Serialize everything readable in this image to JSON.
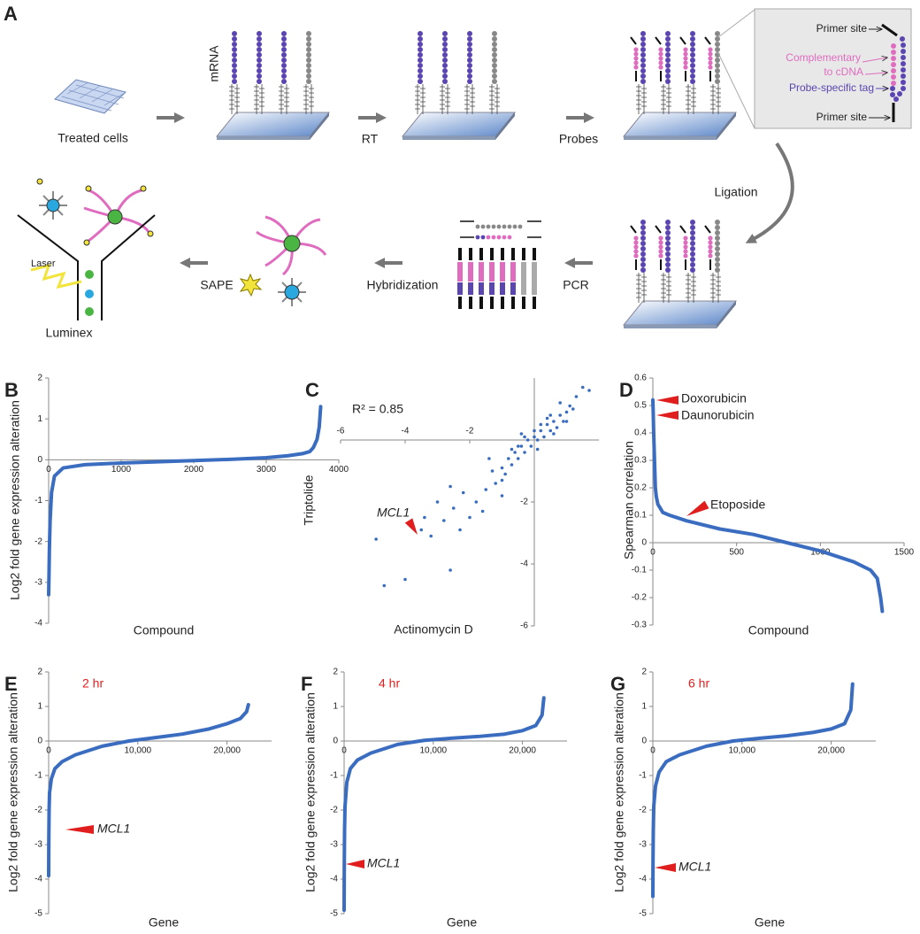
{
  "panel_a": {
    "panel_letter": "A",
    "treated_cells": "Treated cells",
    "mrna": "mRNA",
    "rt": "RT",
    "probes": "Probes",
    "primer_site_top": "Primer site",
    "complementary_1": "Complementary",
    "complementary_2": "to cDNA",
    "probe_tag": "Probe-specific tag",
    "primer_site_bottom": "Primer site",
    "ligation": "Ligation",
    "pcr": "PCR",
    "hybridization": "Hybridization",
    "sape": "SAPE",
    "laser": "Laser",
    "luminex": "Luminex"
  },
  "chart_data": [
    {
      "panel": "B",
      "type": "line",
      "color": "#3a6cc0",
      "x": [
        0,
        5,
        10,
        20,
        40,
        80,
        200,
        500,
        1000,
        1500,
        2000,
        2500,
        3000,
        3300,
        3500,
        3600,
        3650,
        3700,
        3730,
        3750
      ],
      "values": [
        -3.3,
        -2.8,
        -2.2,
        -1.5,
        -0.8,
        -0.4,
        -0.2,
        -0.12,
        -0.08,
        -0.05,
        -0.02,
        0.01,
        0.05,
        0.1,
        0.15,
        0.2,
        0.3,
        0.5,
        0.8,
        1.3
      ],
      "xlim": [
        0,
        4000
      ],
      "xticks": [
        0,
        1000,
        2000,
        3000,
        4000
      ],
      "ylim": [
        -4,
        2
      ],
      "yticks": [
        -4,
        -3,
        -2,
        -1,
        0,
        1,
        2
      ],
      "xlabel": "Compound",
      "ylabel": "Log2 fold gene expression alteration"
    },
    {
      "panel": "C",
      "type": "scatter",
      "color": "#3a6cc0",
      "x": [
        -1.5,
        -1.3,
        -1.2,
        -1.0,
        -0.9,
        -0.8,
        -0.7,
        -0.6,
        -0.5,
        -0.4,
        -0.3,
        -0.2,
        -0.1,
        0,
        0.1,
        0.2,
        0.3,
        0.4,
        0.5,
        0.6,
        0.7,
        0.8,
        0.9,
        1.0,
        1.1,
        1.2,
        1.3,
        -0.5,
        -0.3,
        0,
        0.2,
        0.4,
        0.6,
        0.8,
        1.0,
        -1.0,
        -0.7,
        -0.4,
        0.1,
        0.5,
        -2.5,
        -2.2,
        -2.8,
        -3.0,
        -2.0,
        -3.5,
        -3.2,
        -2.6,
        -1.8,
        -1.6,
        -4.9,
        -4.65,
        -4.0,
        -2.6,
        -1.0,
        -2.3,
        -3.4,
        1.5,
        1.7,
        -1.4
      ],
      "values": [
        -1.6,
        -1.0,
        -1.4,
        -0.9,
        -1.1,
        -0.6,
        -0.8,
        -0.4,
        -0.6,
        -0.2,
        -0.4,
        0.0,
        -0.2,
        0.1,
        0.0,
        0.3,
        0.1,
        0.5,
        0.3,
        0.6,
        0.4,
        0.8,
        0.6,
        0.9,
        1.1,
        1.0,
        1.4,
        -0.2,
        0.1,
        0.3,
        0.5,
        0.7,
        0.2,
        1.2,
        0.6,
        -1.3,
        -0.3,
        0.2,
        -0.3,
        0.8,
        -2.2,
        -1.7,
        -2.6,
        -2.0,
        -2.5,
        -2.9,
        -3.1,
        -1.5,
        -2.0,
        -2.3,
        -3.2,
        -4.7,
        -4.5,
        -4.2,
        -1.8,
        -2.9,
        -2.5,
        1.7,
        1.6,
        -0.6
      ],
      "xlim": [
        -6,
        2
      ],
      "xticks": [
        -6,
        -4,
        -2
      ],
      "ylim": [
        -6,
        2
      ],
      "yticks": [
        -6,
        -4,
        -2
      ],
      "annotations": [
        "R² = 0.85",
        "MCL1"
      ],
      "xlabel": "Actinomycin D",
      "ylabel": "Triptolide"
    },
    {
      "panel": "D",
      "type": "line",
      "color": "#3a6cc0",
      "x": [
        0,
        2,
        5,
        10,
        15,
        20,
        30,
        60,
        100,
        200,
        400,
        600,
        800,
        1000,
        1200,
        1300,
        1340,
        1360,
        1370
      ],
      "values": [
        0.52,
        0.48,
        0.4,
        0.3,
        0.2,
        0.17,
        0.14,
        0.11,
        0.1,
        0.08,
        0.05,
        0.03,
        0.0,
        -0.03,
        -0.07,
        -0.1,
        -0.13,
        -0.2,
        -0.25
      ],
      "xlim": [
        0,
        1500
      ],
      "xticks": [
        0,
        500,
        1000,
        1500
      ],
      "ylim": [
        -0.3,
        0.6
      ],
      "yticks": [
        -0.3,
        -0.2,
        -0.1,
        0,
        0.1,
        0.2,
        0.3,
        0.4,
        0.5,
        0.6
      ],
      "annotations": [
        "Doxorubicin",
        "Daunorubicin",
        "Etoposide"
      ],
      "xlabel": "Compound",
      "ylabel": "Spearman correlation"
    },
    {
      "panel": "E",
      "type": "line",
      "color": "#3a6cc0",
      "x": [
        0,
        20,
        50,
        100,
        300,
        700,
        1500,
        3000,
        6000,
        9000,
        12000,
        15000,
        18000,
        20000,
        21500,
        22200,
        22400
      ],
      "values": [
        -3.9,
        -2.8,
        -2.0,
        -1.5,
        -1.1,
        -0.8,
        -0.6,
        -0.4,
        -0.15,
        0,
        0.1,
        0.2,
        0.35,
        0.5,
        0.65,
        0.85,
        1.05
      ],
      "xlim": [
        0,
        25000
      ],
      "xticks": [
        0,
        {
          "value": 10000,
          "label": "10,000"
        },
        {
          "value": 20000,
          "label": "20,000"
        }
      ],
      "ylim": [
        -5,
        2
      ],
      "yticks": [
        -5,
        -4,
        -3,
        -2,
        -1,
        0,
        1,
        2
      ],
      "annotations": [
        "2 hr",
        "MCL1"
      ],
      "xlabel": "Gene",
      "ylabel": "Log2 fold gene expression alteration"
    },
    {
      "panel": "F",
      "type": "line",
      "color": "#3a6cc0",
      "x": [
        0,
        20,
        50,
        100,
        300,
        700,
        1500,
        3000,
        6000,
        9000,
        12000,
        15000,
        18000,
        20000,
        21500,
        22200,
        22400
      ],
      "values": [
        -4.9,
        -3.6,
        -2.6,
        -1.9,
        -1.2,
        -0.8,
        -0.55,
        -0.35,
        -0.1,
        0.02,
        0.08,
        0.13,
        0.2,
        0.3,
        0.45,
        0.75,
        1.25
      ],
      "xlim": [
        0,
        25000
      ],
      "xticks": [
        0,
        {
          "value": 10000,
          "label": "10,000"
        },
        {
          "value": 20000,
          "label": "20,000"
        }
      ],
      "ylim": [
        -5,
        2
      ],
      "yticks": [
        -5,
        -4,
        -3,
        -2,
        -1,
        0,
        1,
        2
      ],
      "annotations": [
        "4 hr",
        "MCL1"
      ],
      "xlabel": "Gene",
      "ylabel": "Log2 fold gene expression alteration"
    },
    {
      "panel": "G",
      "type": "line",
      "color": "#3a6cc0",
      "x": [
        0,
        20,
        50,
        100,
        300,
        700,
        1500,
        3000,
        6000,
        9000,
        12000,
        15000,
        18000,
        20000,
        21500,
        22200,
        22400
      ],
      "values": [
        -4.5,
        -3.4,
        -2.6,
        -1.9,
        -1.3,
        -0.9,
        -0.6,
        -0.4,
        -0.15,
        0,
        0.08,
        0.15,
        0.25,
        0.35,
        0.5,
        0.9,
        1.65
      ],
      "xlim": [
        0,
        25000
      ],
      "xticks": [
        0,
        {
          "value": 10000,
          "label": "10,000"
        },
        {
          "value": 20000,
          "label": "20,000"
        }
      ],
      "ylim": [
        -5,
        2
      ],
      "yticks": [
        -5,
        -4,
        -3,
        -2,
        -1,
        0,
        1,
        2
      ],
      "annotations": [
        "6 hr",
        "MCL1"
      ],
      "xlabel": "Gene",
      "ylabel": "Log2 fold gene expression alteration"
    }
  ]
}
